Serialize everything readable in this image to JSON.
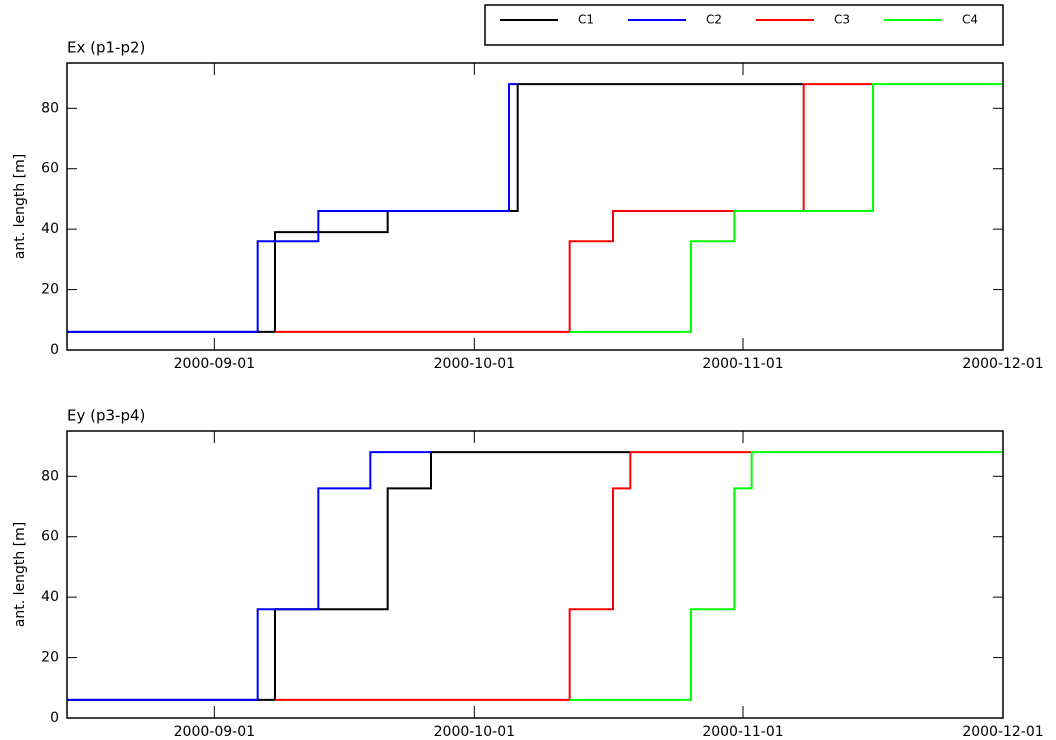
{
  "chart_data": [
    {
      "type": "line",
      "step": "post",
      "title": "Ex (p1-p2)",
      "y_label": "ant. length [m]",
      "xlim": [
        "2000-08-15",
        "2000-12-01"
      ],
      "xticks": [
        "2000-09-01",
        "2000-10-01",
        "2000-11-01",
        "2000-12-01"
      ],
      "ylim": [
        0,
        95
      ],
      "yticks": [
        0,
        20,
        40,
        60,
        80
      ],
      "legend": "top",
      "series": [
        {
          "name": "C1",
          "color": "#000000",
          "x": [
            "2000-08-15",
            "2000-09-08",
            "2000-09-21",
            "2000-10-06",
            "2000-11-08"
          ],
          "values": [
            6,
            39,
            46,
            88,
            88
          ]
        },
        {
          "name": "C2",
          "color": "#0000ff",
          "x": [
            "2000-08-15",
            "2000-09-06",
            "2000-09-13",
            "2000-10-05",
            "2000-10-06"
          ],
          "values": [
            6,
            36,
            46,
            88,
            88
          ]
        },
        {
          "name": "C3",
          "color": "#ff0000",
          "x": [
            "2000-09-08",
            "2000-10-12",
            "2000-10-17",
            "2000-11-08",
            "2000-11-16"
          ],
          "values": [
            6,
            36,
            46,
            88,
            88
          ]
        },
        {
          "name": "C4",
          "color": "#00ff00",
          "x": [
            "2000-10-12",
            "2000-10-26",
            "2000-10-31",
            "2000-11-16",
            "2000-12-01"
          ],
          "values": [
            6,
            36,
            46,
            88,
            88
          ]
        }
      ]
    },
    {
      "type": "line",
      "step": "post",
      "title": "Ey (p3-p4)",
      "y_label": "ant. length [m]",
      "xlim": [
        "2000-08-15",
        "2000-12-01"
      ],
      "xticks": [
        "2000-09-01",
        "2000-10-01",
        "2000-11-01",
        "2000-12-01"
      ],
      "ylim": [
        0,
        95
      ],
      "yticks": [
        0,
        20,
        40,
        60,
        80
      ],
      "series": [
        {
          "name": "C1",
          "color": "#000000",
          "x": [
            "2000-08-15",
            "2000-09-08",
            "2000-09-21",
            "2000-09-26",
            "2000-10-19"
          ],
          "values": [
            6,
            36,
            76,
            88,
            88
          ]
        },
        {
          "name": "C2",
          "color": "#0000ff",
          "x": [
            "2000-08-15",
            "2000-09-06",
            "2000-09-13",
            "2000-09-19",
            "2000-09-26"
          ],
          "values": [
            6,
            36,
            76,
            88,
            88
          ]
        },
        {
          "name": "C3",
          "color": "#ff0000",
          "x": [
            "2000-09-08",
            "2000-10-12",
            "2000-10-17",
            "2000-10-19",
            "2000-11-02"
          ],
          "values": [
            6,
            36,
            76,
            88,
            88
          ]
        },
        {
          "name": "C4",
          "color": "#00ff00",
          "x": [
            "2000-10-12",
            "2000-10-26",
            "2000-10-31",
            "2000-11-02",
            "2000-12-01"
          ],
          "values": [
            6,
            36,
            76,
            88,
            88
          ]
        }
      ]
    }
  ]
}
